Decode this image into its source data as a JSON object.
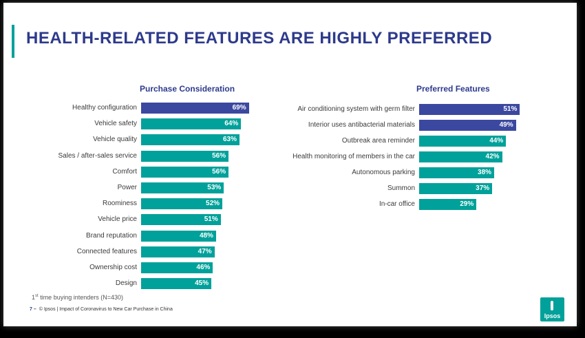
{
  "slide": {
    "title": "HEALTH-RELATED FEATURES ARE HIGHLY PREFERRED",
    "footnote_pre": "1",
    "footnote_sup": "st",
    "footnote_post": " time buying intenders (N=430)",
    "footer_page": "7 –",
    "footer_text": "© Ipsos | Impact of Coronavirus to New Car Purchase in China",
    "logo_text": "Ipsos"
  },
  "colors": {
    "highlight": "#3b48a0",
    "standard": "#00a19a",
    "title": "#2d3a8c"
  },
  "chart_data": [
    {
      "type": "bar",
      "orientation": "horizontal",
      "title": "Purchase Consideration",
      "categories": [
        "Healthy configuration",
        "Vehicle safety",
        "Vehicle quality",
        "Sales / after-sales service",
        "Comfort",
        "Power",
        "Roominess",
        "Vehicle price",
        "Brand reputation",
        "Connected features",
        "Ownership cost",
        "Design"
      ],
      "values": [
        69,
        64,
        63,
        56,
        56,
        53,
        52,
        51,
        48,
        47,
        46,
        45
      ],
      "value_labels": [
        "69%",
        "64%",
        "63%",
        "56%",
        "56%",
        "53%",
        "52%",
        "51%",
        "48%",
        "47%",
        "46%",
        "45%"
      ],
      "highlighted": [
        true,
        false,
        false,
        false,
        false,
        false,
        false,
        false,
        false,
        false,
        false,
        false
      ],
      "xlim": [
        0,
        100
      ],
      "grid": false,
      "legend": "none"
    },
    {
      "type": "bar",
      "orientation": "horizontal",
      "title": "Preferred Features",
      "categories": [
        "Air conditioning system with germ filter",
        "Interior uses antibacterial materials",
        "Outbreak area reminder",
        "Health monitoring of members in the car",
        "Autonomous parking",
        "Summon",
        "In-car office"
      ],
      "values": [
        51,
        49,
        44,
        42,
        38,
        37,
        29
      ],
      "value_labels": [
        "51%",
        "49%",
        "44%",
        "42%",
        "38%",
        "37%",
        "29%"
      ],
      "highlighted": [
        true,
        true,
        false,
        false,
        false,
        false,
        false
      ],
      "xlim": [
        0,
        100
      ],
      "grid": false,
      "legend": "none"
    }
  ]
}
